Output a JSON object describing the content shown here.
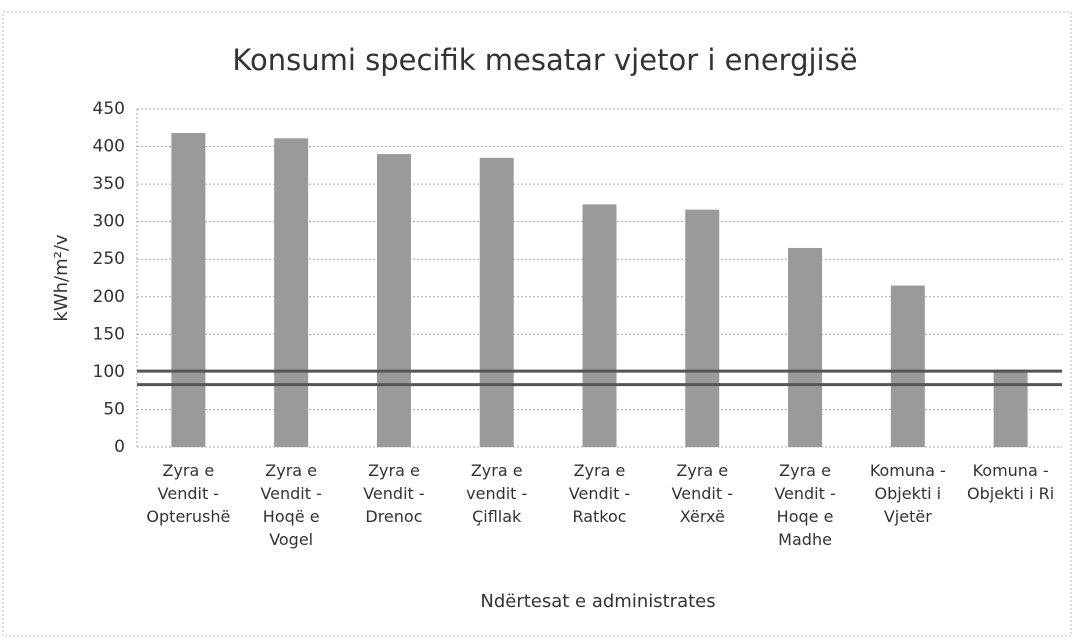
{
  "chart_data": {
    "type": "bar",
    "title": "Konsumi specifik mesatar vjetor i energjisë",
    "x_label": "Ndërtesat e administrates",
    "y_label": "kWh/m²/v",
    "categories": [
      "Zyra e Vendit - Opterushë",
      "Zyra e Vendit - Hoqë e Vogel",
      "Zyra e Vendit - Drenoc",
      "Zyra e vendit - Çifllak",
      "Zyra e Vendit - Ratkoc",
      "Zyra e Vendit - Xërxë",
      "Zyra e Vendit - Hoqe e Madhe",
      "Komuna - Objekti i Vjetër",
      "Komuna - Objekti i Ri"
    ],
    "values": [
      418,
      411,
      390,
      385,
      323,
      316,
      265,
      215,
      103
    ],
    "color": "#9a9a9a",
    "reference_lines": [
      101,
      83
    ],
    "reference_color": "#555555",
    "ylim": [
      0,
      450
    ],
    "yticks": [
      0,
      50,
      100,
      150,
      200,
      250,
      300,
      350,
      400,
      450
    ],
    "grid": true
  }
}
